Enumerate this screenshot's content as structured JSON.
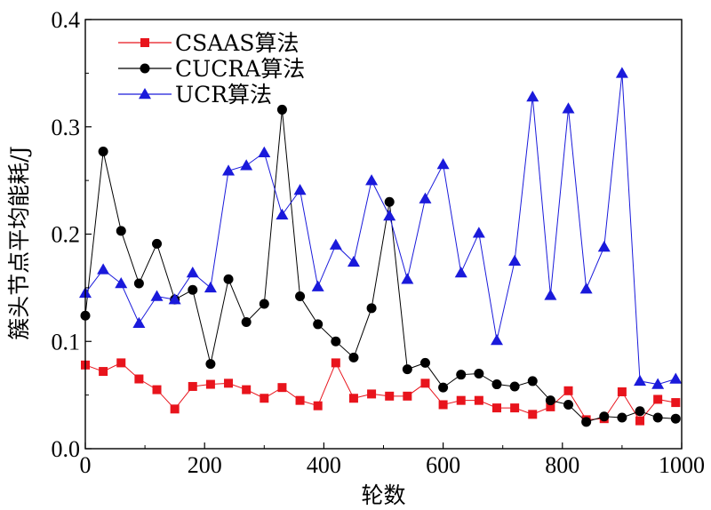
{
  "chart_data": {
    "type": "line",
    "title": "",
    "xlabel": "轮数",
    "ylabel": "簇头节点平均能耗/J",
    "xlim": [
      0,
      1000
    ],
    "ylim": [
      0.0,
      0.4
    ],
    "xticks": [
      "0",
      "200",
      "400",
      "600",
      "800",
      "1000"
    ],
    "yticks": [
      "0.0",
      "0.1",
      "0.2",
      "0.3",
      "0.4"
    ],
    "grid": false,
    "legend_position": "top-left",
    "series": [
      {
        "name": "CSAAS算法",
        "color": "#e8141c",
        "marker": "square",
        "x": [
          0,
          30,
          60,
          90,
          120,
          150,
          180,
          210,
          240,
          270,
          300,
          330,
          360,
          390,
          420,
          450,
          480,
          510,
          540,
          570,
          600,
          630,
          660,
          690,
          720,
          750,
          780,
          810,
          840,
          870,
          900,
          930,
          960,
          990
        ],
        "values": [
          0.078,
          0.072,
          0.08,
          0.065,
          0.055,
          0.037,
          0.058,
          0.06,
          0.061,
          0.055,
          0.047,
          0.057,
          0.045,
          0.04,
          0.08,
          0.047,
          0.051,
          0.049,
          0.049,
          0.061,
          0.041,
          0.045,
          0.045,
          0.038,
          0.038,
          0.032,
          0.039,
          0.054,
          0.027,
          0.028,
          0.053,
          0.026,
          0.046,
          0.043
        ]
      },
      {
        "name": "CUCRA算法",
        "color": "#000000",
        "marker": "circle",
        "x": [
          0,
          30,
          60,
          90,
          120,
          150,
          180,
          210,
          240,
          270,
          300,
          330,
          360,
          390,
          420,
          450,
          480,
          510,
          540,
          570,
          600,
          630,
          660,
          690,
          720,
          750,
          780,
          810,
          840,
          870,
          900,
          930,
          960,
          990
        ],
        "values": [
          0.124,
          0.277,
          0.203,
          0.154,
          0.191,
          0.139,
          0.148,
          0.079,
          0.158,
          0.118,
          0.135,
          0.316,
          0.142,
          0.116,
          0.1,
          0.085,
          0.131,
          0.23,
          0.074,
          0.08,
          0.057,
          0.069,
          0.07,
          0.06,
          0.058,
          0.063,
          0.045,
          0.041,
          0.025,
          0.03,
          0.029,
          0.035,
          0.029,
          0.028
        ]
      },
      {
        "name": "UCR算法",
        "color": "#1a1adb",
        "marker": "triangle",
        "x": [
          0,
          30,
          60,
          90,
          120,
          150,
          180,
          210,
          240,
          270,
          300,
          330,
          360,
          390,
          420,
          450,
          480,
          510,
          540,
          570,
          600,
          630,
          660,
          690,
          720,
          750,
          780,
          810,
          840,
          870,
          900,
          930,
          960,
          990
        ],
        "values": [
          0.145,
          0.167,
          0.154,
          0.117,
          0.142,
          0.139,
          0.164,
          0.15,
          0.259,
          0.264,
          0.276,
          0.218,
          0.241,
          0.151,
          0.19,
          0.174,
          0.25,
          0.217,
          0.158,
          0.233,
          0.265,
          0.164,
          0.201,
          0.101,
          0.175,
          0.328,
          0.143,
          0.317,
          0.149,
          0.188,
          0.35,
          0.063,
          0.06,
          0.065
        ]
      }
    ]
  }
}
